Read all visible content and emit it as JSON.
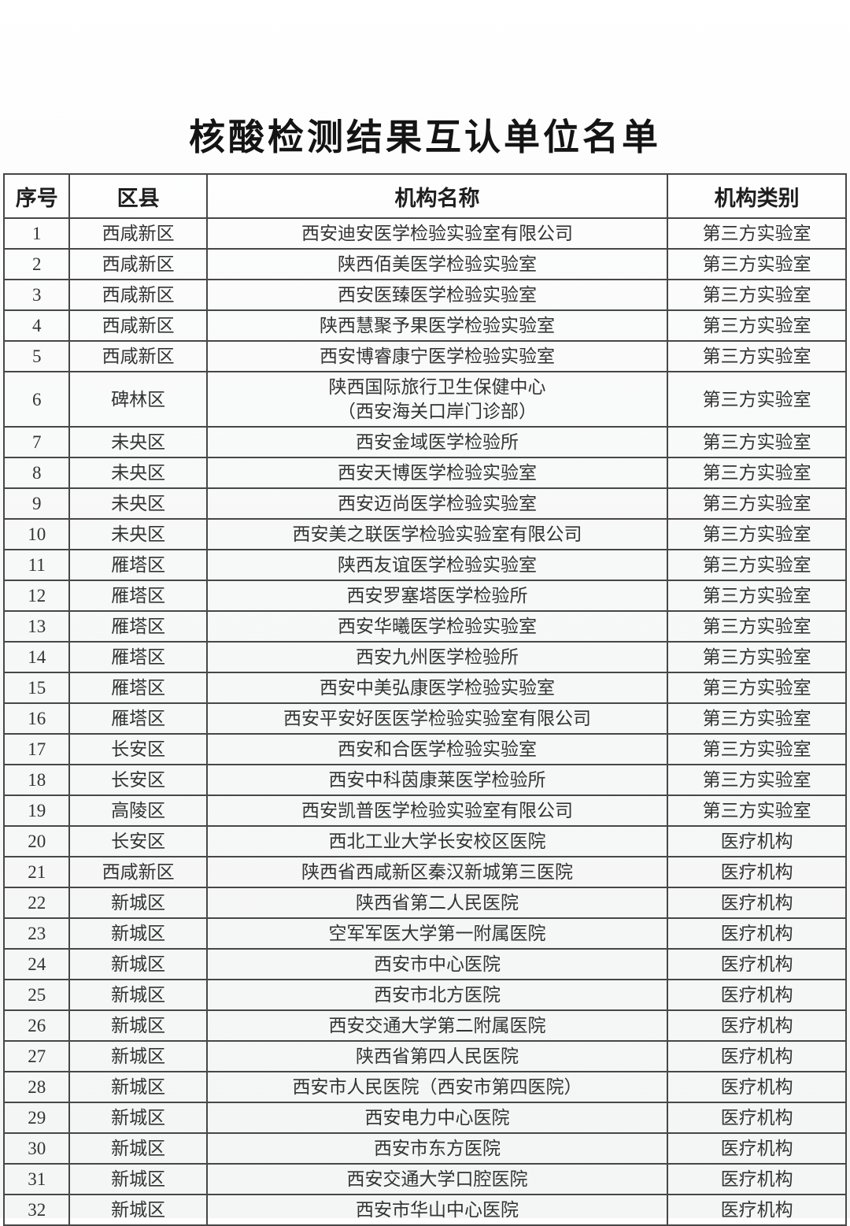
{
  "page": {
    "title": "核酸检测结果互认单位名单"
  },
  "colors": {
    "text": "#333333",
    "title_text": "#141414",
    "border": "#474747",
    "background": "#f6f7f7"
  },
  "table": {
    "headers": [
      "序号",
      "区县",
      "机构名称",
      "机构类别"
    ],
    "column_keys": [
      "index",
      "district",
      "name",
      "type"
    ],
    "rows": [
      [
        "1",
        "西咸新区",
        "西安迪安医学检验实验室有限公司",
        "第三方实验室"
      ],
      [
        "2",
        "西咸新区",
        "陕西佰美医学检验实验室",
        "第三方实验室"
      ],
      [
        "3",
        "西咸新区",
        "西安医臻医学检验实验室",
        "第三方实验室"
      ],
      [
        "4",
        "西咸新区",
        "陕西慧聚予果医学检验实验室",
        "第三方实验室"
      ],
      [
        "5",
        "西咸新区",
        "西安博睿康宁医学检验实验室",
        "第三方实验室"
      ],
      [
        "6",
        "碑林区",
        "陕西国际旅行卫生保健中心\n（西安海关口岸门诊部）",
        "第三方实验室"
      ],
      [
        "7",
        "未央区",
        "西安金域医学检验所",
        "第三方实验室"
      ],
      [
        "8",
        "未央区",
        "西安天博医学检验实验室",
        "第三方实验室"
      ],
      [
        "9",
        "未央区",
        "西安迈尚医学检验实验室",
        "第三方实验室"
      ],
      [
        "10",
        "未央区",
        "西安美之联医学检验实验室有限公司",
        "第三方实验室"
      ],
      [
        "11",
        "雁塔区",
        "陕西友谊医学检验实验室",
        "第三方实验室"
      ],
      [
        "12",
        "雁塔区",
        "西安罗塞塔医学检验所",
        "第三方实验室"
      ],
      [
        "13",
        "雁塔区",
        "西安华曦医学检验实验室",
        "第三方实验室"
      ],
      [
        "14",
        "雁塔区",
        "西安九州医学检验所",
        "第三方实验室"
      ],
      [
        "15",
        "雁塔区",
        "西安中美弘康医学检验实验室",
        "第三方实验室"
      ],
      [
        "16",
        "雁塔区",
        "西安平安好医医学检验实验室有限公司",
        "第三方实验室"
      ],
      [
        "17",
        "长安区",
        "西安和合医学检验实验室",
        "第三方实验室"
      ],
      [
        "18",
        "长安区",
        "西安中科茵康莱医学检验所",
        "第三方实验室"
      ],
      [
        "19",
        "高陵区",
        "西安凯普医学检验实验室有限公司",
        "第三方实验室"
      ],
      [
        "20",
        "长安区",
        "西北工业大学长安校区医院",
        "医疗机构"
      ],
      [
        "21",
        "西咸新区",
        "陕西省西咸新区秦汉新城第三医院",
        "医疗机构"
      ],
      [
        "22",
        "新城区",
        "陕西省第二人民医院",
        "医疗机构"
      ],
      [
        "23",
        "新城区",
        "空军军医大学第一附属医院",
        "医疗机构"
      ],
      [
        "24",
        "新城区",
        "西安市中心医院",
        "医疗机构"
      ],
      [
        "25",
        "新城区",
        "西安市北方医院",
        "医疗机构"
      ],
      [
        "26",
        "新城区",
        "西安交通大学第二附属医院",
        "医疗机构"
      ],
      [
        "27",
        "新城区",
        "陕西省第四人民医院",
        "医疗机构"
      ],
      [
        "28",
        "新城区",
        "西安市人民医院（西安市第四医院）",
        "医疗机构"
      ],
      [
        "29",
        "新城区",
        "西安电力中心医院",
        "医疗机构"
      ],
      [
        "30",
        "新城区",
        "西安市东方医院",
        "医疗机构"
      ],
      [
        "31",
        "新城区",
        "西安交通大学口腔医院",
        "医疗机构"
      ],
      [
        "32",
        "新城区",
        "西安市华山中心医院",
        "医疗机构"
      ]
    ]
  }
}
